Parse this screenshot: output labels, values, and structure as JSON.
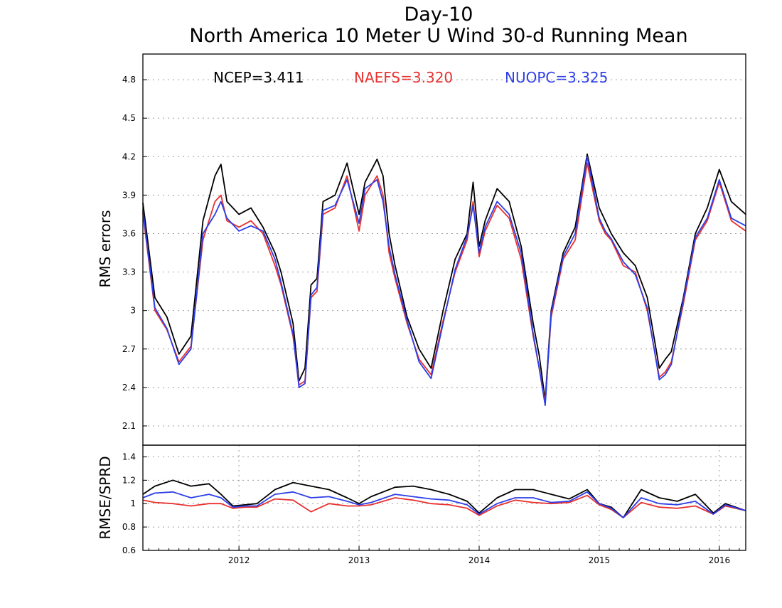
{
  "chart_data": [
    {
      "type": "line",
      "title": "Day-10",
      "subtitle": "North America 10 Meter U Wind 30-d Running Mean",
      "ylabel": "RMS errors",
      "xlabel": "",
      "ylim": [
        1.95,
        5.0
      ],
      "yticks": [
        2.1,
        2.4,
        2.7,
        3,
        3.3,
        3.6,
        3.9,
        4.2,
        4.5,
        4.8
      ],
      "ytick_labels": [
        "2.1",
        "2.4",
        "2.7",
        "3",
        "3.3",
        "3.6",
        "3.9",
        "4.2",
        "4.5",
        "4.8"
      ],
      "xlim": [
        2011.2,
        2016.22
      ],
      "grid": true,
      "legend_placement": "top",
      "series": [
        {
          "name": "NCEP",
          "label": "NCEP=3.411",
          "color": "#000000",
          "x": [
            2011.2,
            2011.3,
            2011.4,
            2011.5,
            2011.6,
            2011.7,
            2011.8,
            2011.85,
            2011.9,
            2012.0,
            2012.1,
            2012.2,
            2012.3,
            2012.35,
            2012.45,
            2012.5,
            2012.55,
            2012.6,
            2012.65,
            2012.7,
            2012.8,
            2012.9,
            2013.0,
            2013.05,
            2013.15,
            2013.2,
            2013.25,
            2013.3,
            2013.4,
            2013.5,
            2013.6,
            2013.7,
            2013.8,
            2013.9,
            2013.95,
            2014.0,
            2014.05,
            2014.15,
            2014.25,
            2014.35,
            2014.45,
            2014.5,
            2014.55,
            2014.6,
            2014.7,
            2014.8,
            2014.9,
            2015.0,
            2015.05,
            2015.1,
            2015.2,
            2015.3,
            2015.4,
            2015.5,
            2015.55,
            2015.6,
            2015.7,
            2015.8,
            2015.9,
            2016.0,
            2016.1,
            2016.22
          ],
          "values": [
            3.84,
            3.1,
            2.95,
            2.66,
            2.8,
            3.7,
            4.05,
            4.14,
            3.85,
            3.75,
            3.8,
            3.65,
            3.45,
            3.3,
            2.9,
            2.45,
            2.55,
            3.2,
            3.25,
            3.85,
            3.9,
            4.15,
            3.75,
            4.0,
            4.18,
            4.05,
            3.6,
            3.35,
            2.95,
            2.7,
            2.55,
            3.0,
            3.4,
            3.6,
            4.0,
            3.5,
            3.7,
            3.95,
            3.85,
            3.5,
            2.9,
            2.65,
            2.3,
            3.0,
            3.45,
            3.65,
            4.22,
            3.8,
            3.7,
            3.6,
            3.45,
            3.35,
            3.1,
            2.55,
            2.62,
            2.68,
            3.1,
            3.6,
            3.8,
            4.1,
            3.85,
            3.75
          ]
        },
        {
          "name": "NAEFS",
          "label": "NAEFS=3.320",
          "color": "#e8312f",
          "x": [
            2011.2,
            2011.3,
            2011.4,
            2011.5,
            2011.6,
            2011.7,
            2011.8,
            2011.85,
            2011.9,
            2012.0,
            2012.1,
            2012.2,
            2012.3,
            2012.35,
            2012.45,
            2012.5,
            2012.55,
            2012.6,
            2012.65,
            2012.7,
            2012.8,
            2012.9,
            2013.0,
            2013.05,
            2013.15,
            2013.2,
            2013.25,
            2013.3,
            2013.4,
            2013.5,
            2013.6,
            2013.7,
            2013.8,
            2013.9,
            2013.95,
            2014.0,
            2014.05,
            2014.15,
            2014.25,
            2014.35,
            2014.45,
            2014.5,
            2014.55,
            2014.6,
            2014.7,
            2014.8,
            2014.9,
            2015.0,
            2015.05,
            2015.1,
            2015.2,
            2015.3,
            2015.4,
            2015.5,
            2015.55,
            2015.6,
            2015.7,
            2015.8,
            2015.9,
            2016.0,
            2016.1,
            2016.22
          ],
          "values": [
            3.76,
            3.0,
            2.85,
            2.6,
            2.72,
            3.55,
            3.85,
            3.9,
            3.7,
            3.65,
            3.7,
            3.6,
            3.35,
            3.2,
            2.8,
            2.42,
            2.45,
            3.1,
            3.15,
            3.75,
            3.8,
            4.05,
            3.62,
            3.9,
            4.05,
            3.9,
            3.45,
            3.25,
            2.9,
            2.62,
            2.5,
            2.92,
            3.3,
            3.55,
            3.85,
            3.42,
            3.62,
            3.82,
            3.72,
            3.4,
            2.8,
            2.55,
            2.28,
            2.95,
            3.4,
            3.55,
            4.15,
            3.7,
            3.6,
            3.55,
            3.35,
            3.3,
            3.0,
            2.48,
            2.52,
            2.6,
            3.05,
            3.55,
            3.7,
            4.0,
            3.7,
            3.62
          ]
        },
        {
          "name": "NUOPC",
          "label": "NUOPC=3.325",
          "color": "#2d3ee8",
          "x": [
            2011.2,
            2011.3,
            2011.4,
            2011.5,
            2011.6,
            2011.7,
            2011.8,
            2011.85,
            2011.9,
            2012.0,
            2012.1,
            2012.2,
            2012.3,
            2012.35,
            2012.45,
            2012.5,
            2012.55,
            2012.6,
            2012.65,
            2012.7,
            2012.8,
            2012.9,
            2013.0,
            2013.05,
            2013.15,
            2013.2,
            2013.25,
            2013.3,
            2013.4,
            2013.5,
            2013.6,
            2013.7,
            2013.8,
            2013.9,
            2013.95,
            2014.0,
            2014.05,
            2014.15,
            2014.25,
            2014.35,
            2014.45,
            2014.5,
            2014.55,
            2014.6,
            2014.7,
            2014.8,
            2014.9,
            2015.0,
            2015.05,
            2015.1,
            2015.2,
            2015.3,
            2015.4,
            2015.5,
            2015.55,
            2015.6,
            2015.7,
            2015.8,
            2015.9,
            2016.0,
            2016.1,
            2016.22
          ],
          "values": [
            3.78,
            3.02,
            2.86,
            2.58,
            2.7,
            3.6,
            3.75,
            3.85,
            3.72,
            3.62,
            3.66,
            3.62,
            3.4,
            3.22,
            2.82,
            2.4,
            2.43,
            3.12,
            3.18,
            3.78,
            3.82,
            4.02,
            3.68,
            3.95,
            4.02,
            3.85,
            3.5,
            3.28,
            2.92,
            2.6,
            2.47,
            2.9,
            3.32,
            3.58,
            3.82,
            3.45,
            3.65,
            3.85,
            3.75,
            3.45,
            2.82,
            2.55,
            2.26,
            2.98,
            3.42,
            3.6,
            4.2,
            3.72,
            3.62,
            3.56,
            3.38,
            3.28,
            3.02,
            2.46,
            2.5,
            2.58,
            3.08,
            3.57,
            3.72,
            4.02,
            3.72,
            3.66
          ]
        }
      ]
    },
    {
      "type": "line",
      "title": "",
      "ylabel": "RMSE/SPRD",
      "xlabel": "",
      "ylim": [
        0.6,
        1.5
      ],
      "yticks": [
        0.6,
        0.8,
        1,
        1.2,
        1.4
      ],
      "ytick_labels": [
        "0.6",
        "0.8",
        "1",
        "1.2",
        "1.4"
      ],
      "xlim": [
        2011.2,
        2016.22
      ],
      "xticks": [
        2012,
        2013,
        2014,
        2015,
        2016
      ],
      "xtick_labels": [
        "2012",
        "2013",
        "2014",
        "2015",
        "2016"
      ],
      "grid": true,
      "series": [
        {
          "color": "#000000",
          "x": [
            2011.2,
            2011.3,
            2011.45,
            2011.6,
            2011.75,
            2011.85,
            2011.95,
            2012.05,
            2012.15,
            2012.3,
            2012.45,
            2012.6,
            2012.75,
            2012.9,
            2013.0,
            2013.1,
            2013.3,
            2013.45,
            2013.6,
            2013.75,
            2013.9,
            2014.0,
            2014.15,
            2014.3,
            2014.45,
            2014.6,
            2014.75,
            2014.9,
            2015.0,
            2015.1,
            2015.2,
            2015.35,
            2015.5,
            2015.65,
            2015.8,
            2015.95,
            2016.05,
            2016.22
          ],
          "values": [
            1.08,
            1.15,
            1.2,
            1.15,
            1.17,
            1.08,
            0.98,
            0.99,
            1.0,
            1.12,
            1.18,
            1.15,
            1.12,
            1.05,
            1.0,
            1.06,
            1.14,
            1.15,
            1.12,
            1.08,
            1.02,
            0.92,
            1.05,
            1.12,
            1.12,
            1.08,
            1.04,
            1.12,
            1.0,
            0.97,
            0.88,
            1.12,
            1.05,
            1.02,
            1.08,
            0.92,
            1.0,
            0.94
          ]
        },
        {
          "color": "#e8312f",
          "x": [
            2011.2,
            2011.3,
            2011.45,
            2011.6,
            2011.75,
            2011.85,
            2011.95,
            2012.05,
            2012.15,
            2012.3,
            2012.45,
            2012.6,
            2012.75,
            2012.9,
            2013.0,
            2013.1,
            2013.3,
            2013.45,
            2013.6,
            2013.75,
            2013.9,
            2014.0,
            2014.15,
            2014.3,
            2014.45,
            2014.6,
            2014.75,
            2014.9,
            2015.0,
            2015.1,
            2015.2,
            2015.35,
            2015.5,
            2015.65,
            2015.8,
            2015.95,
            2016.05,
            2016.22
          ],
          "values": [
            1.03,
            1.01,
            1.0,
            0.98,
            1.0,
            1.0,
            0.96,
            0.97,
            0.97,
            1.04,
            1.03,
            0.93,
            1.0,
            0.98,
            0.98,
            0.99,
            1.05,
            1.03,
            1.0,
            0.99,
            0.96,
            0.9,
            0.98,
            1.03,
            1.01,
            1.0,
            1.01,
            1.07,
            0.99,
            0.95,
            0.88,
            1.01,
            0.97,
            0.96,
            0.98,
            0.91,
            0.98,
            0.94
          ]
        },
        {
          "color": "#2d3ee8",
          "x": [
            2011.2,
            2011.3,
            2011.45,
            2011.6,
            2011.75,
            2011.85,
            2011.95,
            2012.05,
            2012.15,
            2012.3,
            2012.45,
            2012.6,
            2012.75,
            2012.9,
            2013.0,
            2013.1,
            2013.3,
            2013.45,
            2013.6,
            2013.75,
            2013.9,
            2014.0,
            2014.15,
            2014.3,
            2014.45,
            2014.6,
            2014.75,
            2014.9,
            2015.0,
            2015.1,
            2015.2,
            2015.35,
            2015.5,
            2015.65,
            2015.8,
            2015.95,
            2016.05,
            2016.22
          ],
          "values": [
            1.05,
            1.09,
            1.1,
            1.05,
            1.08,
            1.05,
            0.97,
            0.98,
            0.98,
            1.08,
            1.1,
            1.05,
            1.06,
            1.02,
            0.99,
            1.01,
            1.08,
            1.06,
            1.04,
            1.03,
            0.99,
            0.91,
            1.0,
            1.05,
            1.05,
            1.01,
            1.02,
            1.1,
            1.0,
            0.96,
            0.88,
            1.05,
            1.0,
            0.99,
            1.02,
            0.91,
            0.99,
            0.94
          ]
        }
      ]
    }
  ]
}
